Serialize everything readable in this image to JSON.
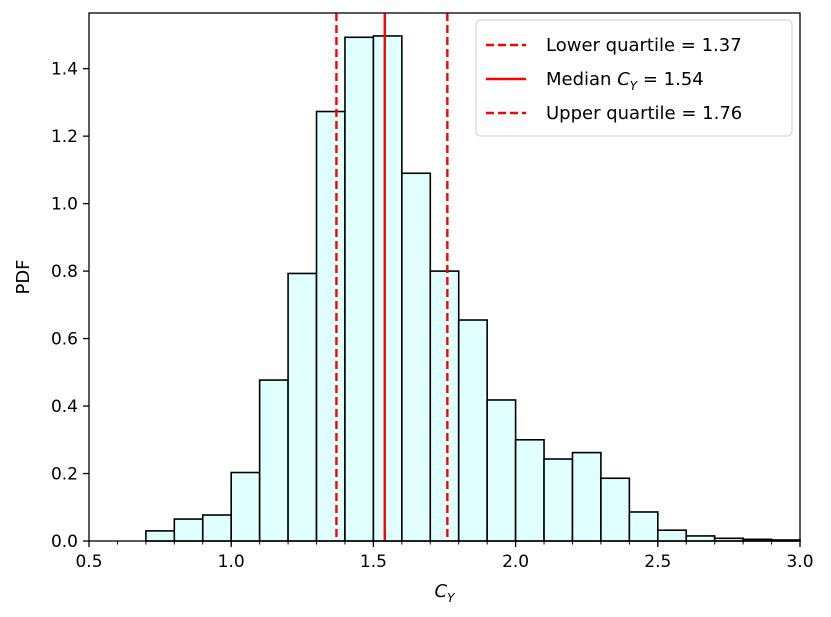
{
  "chart_data": {
    "type": "bar",
    "title": "",
    "xlabel": "C",
    "xlabel_sub": "Y",
    "ylabel": "PDF",
    "xlim": [
      0.5,
      3.0
    ],
    "ylim": [
      0.0,
      1.565
    ],
    "bin_width": 0.1,
    "xticks": [
      "0.5",
      "1.0",
      "1.5",
      "2.0",
      "2.5",
      "3.0"
    ],
    "xtick_values": [
      0.5,
      1.0,
      1.5,
      2.0,
      2.5,
      3.0
    ],
    "yticks": [
      "0.0",
      "0.2",
      "0.4",
      "0.6",
      "0.8",
      "1.0",
      "1.2",
      "1.4"
    ],
    "ytick_values": [
      0.0,
      0.2,
      0.4,
      0.6,
      0.8,
      1.0,
      1.2,
      1.4
    ],
    "bins": [
      {
        "x": 0.7,
        "value": 0.03
      },
      {
        "x": 0.8,
        "value": 0.065
      },
      {
        "x": 0.9,
        "value": 0.077
      },
      {
        "x": 1.0,
        "value": 0.203
      },
      {
        "x": 1.1,
        "value": 0.477
      },
      {
        "x": 1.2,
        "value": 0.793
      },
      {
        "x": 1.3,
        "value": 1.273
      },
      {
        "x": 1.4,
        "value": 1.493
      },
      {
        "x": 1.5,
        "value": 1.497
      },
      {
        "x": 1.6,
        "value": 1.09
      },
      {
        "x": 1.7,
        "value": 0.8
      },
      {
        "x": 1.8,
        "value": 0.655
      },
      {
        "x": 1.9,
        "value": 0.418
      },
      {
        "x": 2.0,
        "value": 0.3
      },
      {
        "x": 2.1,
        "value": 0.243
      },
      {
        "x": 2.2,
        "value": 0.262
      },
      {
        "x": 2.3,
        "value": 0.186
      },
      {
        "x": 2.4,
        "value": 0.086
      },
      {
        "x": 2.5,
        "value": 0.032
      },
      {
        "x": 2.6,
        "value": 0.015
      },
      {
        "x": 2.7,
        "value": 0.008
      },
      {
        "x": 2.8,
        "value": 0.005
      },
      {
        "x": 2.9,
        "value": 0.003
      }
    ],
    "bar_fill": "#e0ffff",
    "bar_edge": "#000000",
    "reference_lines": [
      {
        "name": "Lower quartile",
        "x": 1.37,
        "style": "dashed",
        "color": "#ff0000",
        "label": "Lower quartile = 1.37"
      },
      {
        "name": "Median",
        "x": 1.54,
        "style": "solid",
        "color": "#ff0000",
        "label": "Median",
        "label_var": "C",
        "label_sub": "Y",
        "label_value": " = 1.54"
      },
      {
        "name": "Upper quartile",
        "x": 1.76,
        "style": "dashed",
        "color": "#ff0000",
        "label": "Upper quartile = 1.76"
      }
    ],
    "legend_position": "top-right",
    "grid": false
  }
}
